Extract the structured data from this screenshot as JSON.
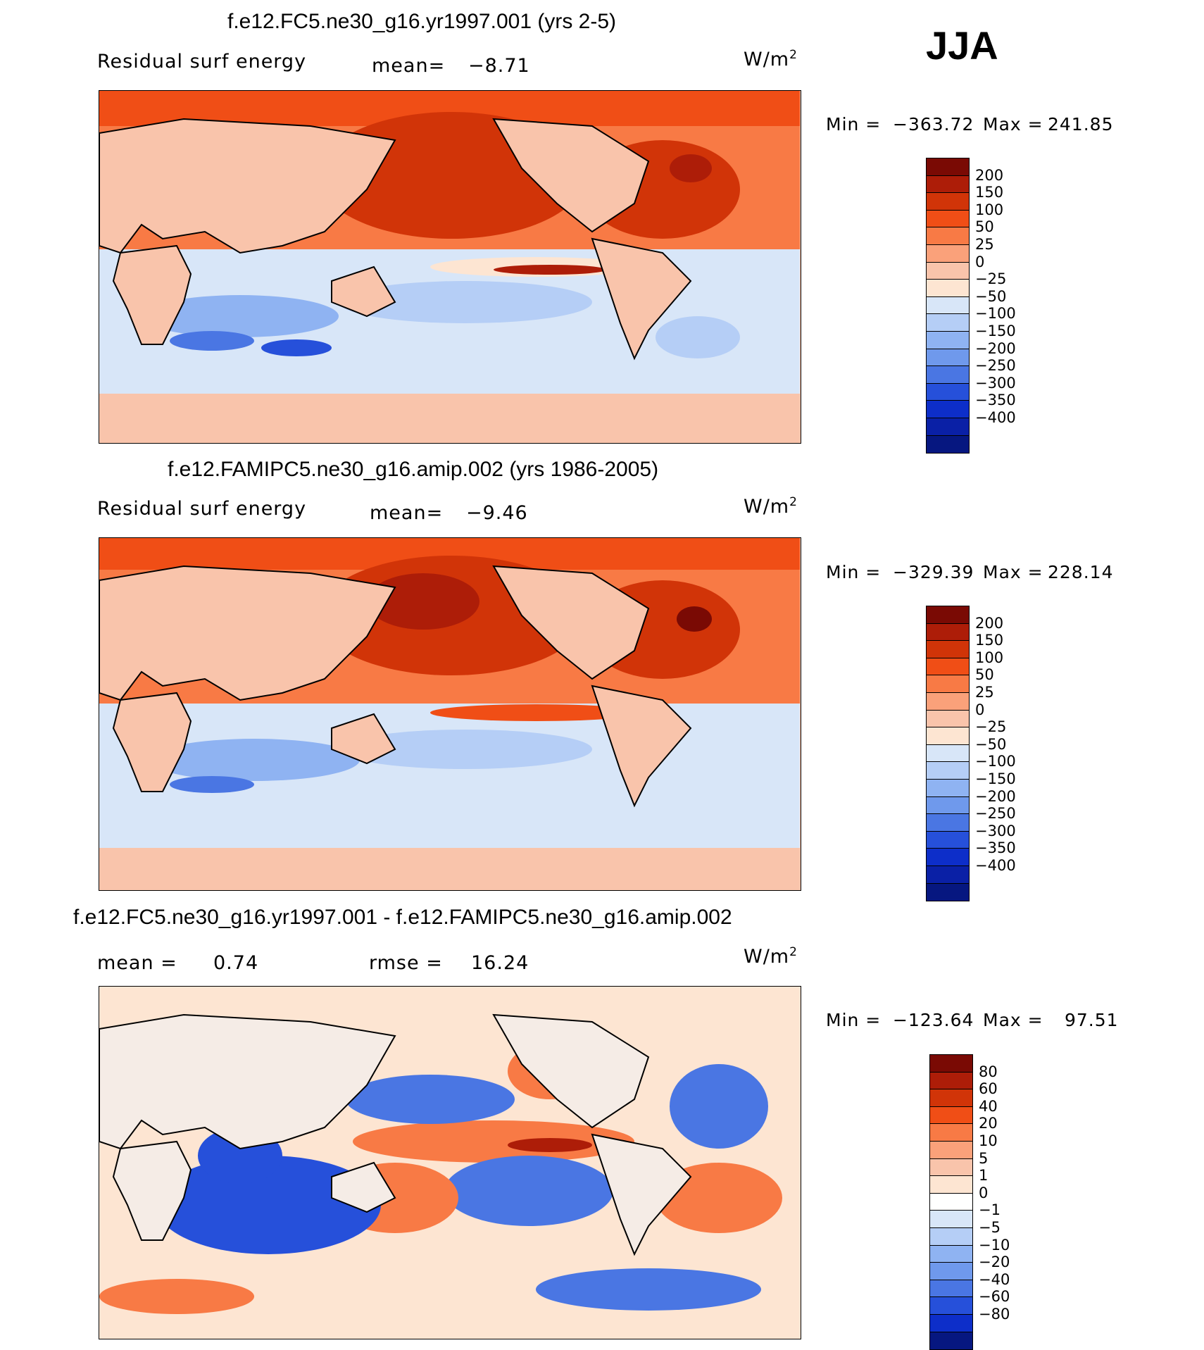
{
  "season": "JJA",
  "units": "W/m",
  "units_exp": "2",
  "panels": [
    {
      "title": "f.e12.FC5.ne30_g16.yr1997.001 (yrs 2-5)",
      "left_label": "Residual surf energy",
      "stat_label": "mean=",
      "stat_value": "−8.71",
      "min_label": "Min =",
      "min_value": "−363.72",
      "max_label": "Max =",
      "max_value": "241.85"
    },
    {
      "title": "f.e12.FAMIPC5.ne30_g16.amip.002 (yrs 1986-2005)",
      "left_label": "Residual surf energy",
      "stat_label": "mean=",
      "stat_value": "−9.46",
      "min_label": "Min =",
      "min_value": "−329.39",
      "max_label": "Max =",
      "max_value": "228.14"
    },
    {
      "title": "f.e12.FC5.ne30_g16.yr1997.001 - f.e12.FAMIPC5.ne30_g16.amip.002",
      "left_label": "mean =",
      "left_value": "0.74",
      "stat_label": "rmse =",
      "stat_value": "16.24",
      "min_label": "Min =",
      "min_value": "−123.64",
      "max_label": "Max =",
      "max_value": "97.51"
    }
  ],
  "chart_data": [
    {
      "type": "heatmap",
      "title": "f.e12.FC5.ne30_g16.yr1997.001 (yrs 2-5)",
      "variable": "Residual surf energy",
      "units": "W/m2",
      "mean": -8.71,
      "min": -363.72,
      "max": 241.85,
      "colorbar_levels": [
        "200",
        "150",
        "100",
        "50",
        "25",
        "0",
        "−25",
        "−50",
        "−100",
        "−150",
        "−200",
        "−250",
        "−300",
        "−350",
        "−400"
      ],
      "colorbar_colors": [
        "#7a0a04",
        "#ad1d08",
        "#d13408",
        "#f04e16",
        "#f87a45",
        "#faa17a",
        "#f9c4ab",
        "#fde5d2",
        "#d8e6f8",
        "#b5cef6",
        "#8fb3f2",
        "#6f99ec",
        "#4a76e3",
        "#2650da",
        "#0d2ec9",
        "#0a20a6",
        "#061780"
      ]
    },
    {
      "type": "heatmap",
      "title": "f.e12.FAMIPC5.ne30_g16.amip.002 (yrs 1986-2005)",
      "variable": "Residual surf energy",
      "units": "W/m2",
      "mean": -9.46,
      "min": -329.39,
      "max": 228.14,
      "colorbar_levels": [
        "200",
        "150",
        "100",
        "50",
        "25",
        "0",
        "−25",
        "−50",
        "−100",
        "−150",
        "−200",
        "−250",
        "−300",
        "−350",
        "−400"
      ],
      "colorbar_colors": [
        "#7a0a04",
        "#ad1d08",
        "#d13408",
        "#f04e16",
        "#f87a45",
        "#faa17a",
        "#f9c4ab",
        "#fde5d2",
        "#d8e6f8",
        "#b5cef6",
        "#8fb3f2",
        "#6f99ec",
        "#4a76e3",
        "#2650da",
        "#0d2ec9",
        "#0a20a6",
        "#061780"
      ]
    },
    {
      "type": "heatmap",
      "title": "f.e12.FC5.ne30_g16.yr1997.001 - f.e12.FAMIPC5.ne30_g16.amip.002",
      "units": "W/m2",
      "mean": 0.74,
      "rmse": 16.24,
      "min": -123.64,
      "max": 97.51,
      "colorbar_levels": [
        "80",
        "60",
        "40",
        "20",
        "10",
        "5",
        "1",
        "0",
        "−1",
        "−5",
        "−10",
        "−20",
        "−40",
        "−60",
        "−80"
      ],
      "colorbar_colors": [
        "#7a0a04",
        "#ad1d08",
        "#d13408",
        "#f04e16",
        "#f87a45",
        "#faa17a",
        "#f9c4ab",
        "#fde5d2",
        "#ffffff",
        "#d8e6f8",
        "#b5cef6",
        "#8fb3f2",
        "#6f99ec",
        "#4a76e3",
        "#2650da",
        "#0d2ec9",
        "#061780"
      ]
    }
  ]
}
